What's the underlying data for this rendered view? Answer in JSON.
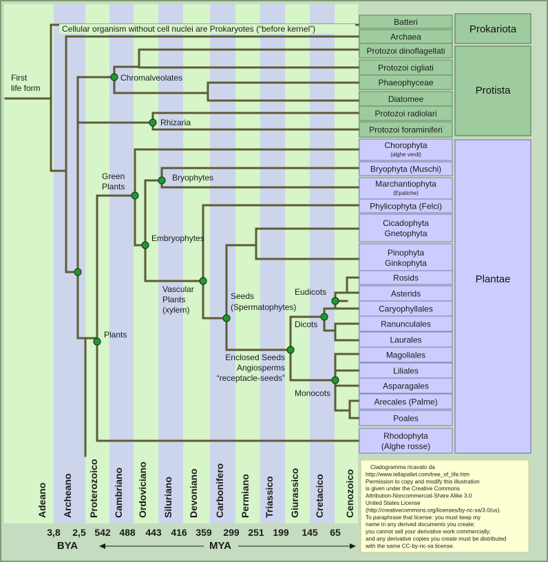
{
  "colors": {
    "frame": "#c6dcc0",
    "band_light": "#d6f5c8",
    "band_blue": "#cdd5ec",
    "line": "#5d5b36",
    "node": "#1f9a30",
    "leaf_green": "#9fcc9f",
    "leaf_violet": "#ccccff",
    "license_bg": "#ffffd4"
  },
  "annotations": {
    "first_life": [
      "First",
      "life form"
    ],
    "prokaryote_note": "Cellular organism without cell nuclei are Prokaryotes (“before kernel”)",
    "chromalveolates": "Chromalveolates",
    "rhizaria": "Rhizaria",
    "green_plants": [
      "Green",
      "Plants"
    ],
    "bryophytes": "Bryophytes",
    "embryophytes": "Embryophytes",
    "vascular": [
      "Vascular",
      "Plants",
      "(xylem)"
    ],
    "seeds": [
      "Seeds",
      "(Spermatophytes)"
    ],
    "enclosed": [
      "Enclosed Seeds",
      "Angiosperms",
      "“receptacle-seeds”"
    ],
    "eudicots": "Eudicots",
    "dicots": "Dicots",
    "monocots": "Monocots",
    "plants": "Plants"
  },
  "leaves": [
    {
      "label": "Batteri",
      "group": "pro"
    },
    {
      "label": "Archaea",
      "group": "pro"
    },
    {
      "label": "Protozoi dinoflagellati",
      "group": "pro"
    },
    {
      "label": "Protozoi cigliati",
      "group": "pro"
    },
    {
      "label": "Phaeophyceae",
      "group": "pro"
    },
    {
      "label": "Diatomee",
      "group": "pro"
    },
    {
      "label": "Protozoi radiolari",
      "group": "pro"
    },
    {
      "label": "Protozoi foraminiferi",
      "group": "pro"
    },
    {
      "label": "Chorophyta",
      "sub": "(alghe verdi)",
      "group": "pla"
    },
    {
      "label": "Bryophyta (Muschi)",
      "group": "pla"
    },
    {
      "label": "Marchantiophyta",
      "sub": "(Epatiche)",
      "group": "pla"
    },
    {
      "label": "Phylicophyta (Felci)",
      "group": "pla"
    },
    {
      "label": "Cicadophyta",
      "label2": "Gnetophyta",
      "group": "pla"
    },
    {
      "label": "Pinophyta",
      "label2": "Ginkophyta",
      "group": "pla"
    },
    {
      "label": "Rosids",
      "group": "pla"
    },
    {
      "label": "Asterids",
      "group": "pla"
    },
    {
      "label": "Caryophyllales",
      "group": "pla"
    },
    {
      "label": "Ranunculales",
      "group": "pla"
    },
    {
      "label": "Laurales",
      "group": "pla"
    },
    {
      "label": "Magoliales",
      "group": "pla"
    },
    {
      "label": "Liliales",
      "group": "pla"
    },
    {
      "label": "Asparagales",
      "group": "pla"
    },
    {
      "label": "Arecales (Palme)",
      "group": "pla"
    },
    {
      "label": "Poales",
      "group": "pla"
    },
    {
      "label": "Rhodophyta",
      "label2": "(Alghe rosse)",
      "group": "pla"
    }
  ],
  "kingdoms": [
    "Prokariota",
    "Protista",
    "Plantae"
  ],
  "eras": [
    "Adeano",
    "Archeano",
    "Proterozoico",
    "Cambriano",
    "Ordoviciano",
    "Siluriano",
    "Devoniano",
    "Carbonifero",
    "Permiano",
    "Triassico",
    "Giurassico",
    "Cretacico",
    "Cenozoico"
  ],
  "ages": [
    "3,8",
    "2,5",
    "542",
    "488",
    "443",
    "416",
    "359",
    "299",
    "251",
    "199",
    "145",
    "65"
  ],
  "scale": {
    "bya": "BYA",
    "mya": "MYA"
  },
  "license": [
    "Cladogramma ricavato da",
    "http://www.tellapallet.com/tree_of_life.htm",
    "Permission to copy and modify this illustration",
    "is given under the Creative Commons",
    "Attribution-Noncommercial-Share Alike 3.0",
    "United States License",
    "(http://creativecommons.org/licenses/by-nc-sa/3.0/us).",
    "To paraphrase that license:  you must keep my",
    "name in any derived documents you create;",
    "you cannot sell your derivative work commercially;",
    "and any derivative copies you create must be distributed",
    "with the same CC-by-nc-sa license."
  ]
}
